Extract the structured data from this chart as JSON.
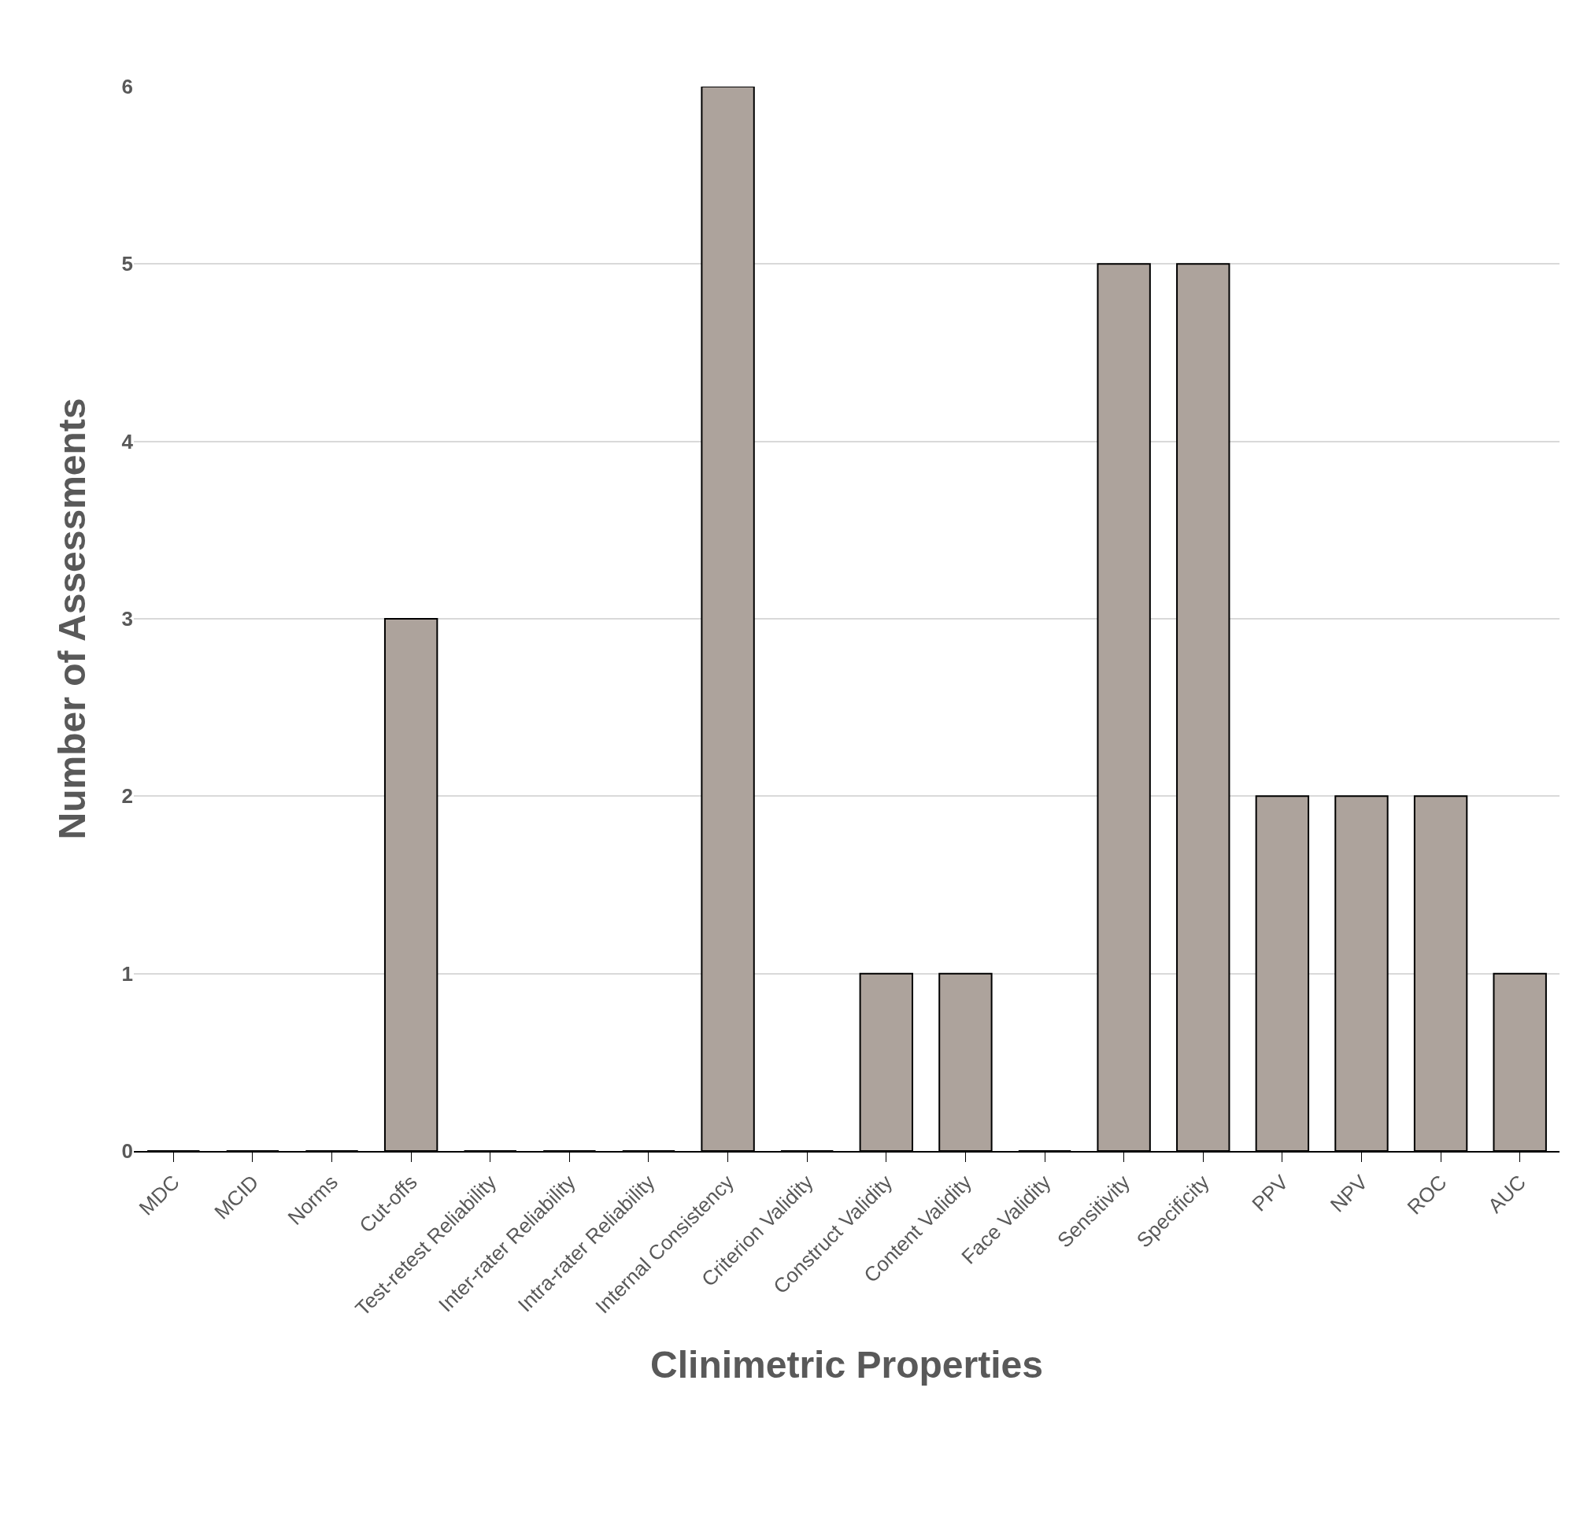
{
  "chart_data": {
    "type": "bar",
    "xlabel": "Clinimetric Properties",
    "ylabel": "Number of Assessments",
    "categories": [
      "MDC",
      "MCID",
      "Norms",
      "Cut-offs",
      "Test-retest Reliability",
      "Inter-rater Reliability",
      "Intra-rater Reliability",
      "Internal Consistency",
      "Criterion Validity",
      "Construct Validity",
      "Content Validity",
      "Face Validity",
      "Sensitivity",
      "Specificity",
      "PPV",
      "NPV",
      "ROC",
      "AUC"
    ],
    "values": [
      0,
      0,
      0,
      3,
      0,
      0,
      0,
      6,
      0,
      1,
      1,
      0,
      5,
      5,
      2,
      2,
      2,
      1
    ],
    "color": "#ada39c",
    "ylim": [
      0,
      6
    ],
    "yticks": [
      0,
      1,
      2,
      3,
      4,
      5,
      6
    ],
    "grid": "y",
    "legend": false
  }
}
